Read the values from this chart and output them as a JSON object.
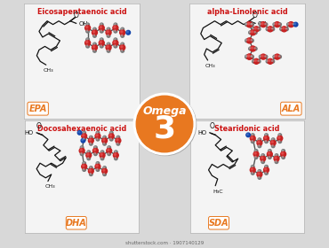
{
  "bg_color": "#d8d8d8",
  "panel_color": "#f4f4f4",
  "panel_edge": "#bbbbbb",
  "title_color": "#cc1111",
  "abbr_color": "#e87820",
  "omega_circle_color": "#e87820",
  "omega_circle_border": "#f5f5f5",
  "titles": [
    "Eicosapentaenoic acid",
    "alpha-Linolenic acid",
    "Docosahexaenoic acid",
    "Stearidonic acid"
  ],
  "abbrs": [
    "EPA",
    "ALA",
    "DHA",
    "SDA"
  ],
  "watermark": "shutterstock.com · 1907140129",
  "atom_red": "#c62222",
  "atom_dark_red": "#8b0000",
  "atom_gray": "#777777",
  "atom_blue": "#1144aa",
  "bond_color": "#222222",
  "struct_color": "#111111"
}
